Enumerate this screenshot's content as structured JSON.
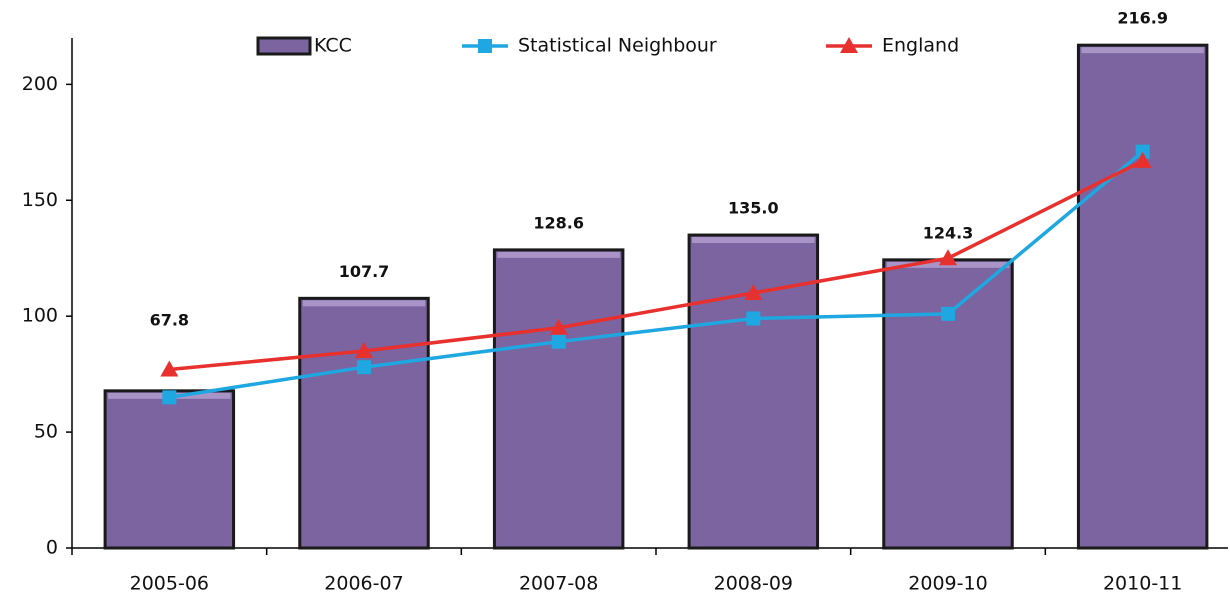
{
  "chart_data": {
    "type": "bar",
    "categories": [
      "2005-06",
      "2006-07",
      "2007-08",
      "2008-09",
      "2009-10",
      "2010-11"
    ],
    "series": [
      {
        "name": "KCC",
        "type": "bar",
        "color": "#7b64a0",
        "values": [
          67.8,
          107.7,
          128.6,
          135.0,
          124.3,
          216.9
        ],
        "value_labels": [
          "67.8",
          "107.7",
          "128.6",
          "135.0",
          "124.3",
          "216.9"
        ]
      },
      {
        "name": "Statistical Neighbour",
        "type": "line",
        "marker": "square",
        "color": "#1ea7e0",
        "values": [
          65,
          78,
          89,
          99,
          101,
          171
        ]
      },
      {
        "name": "England",
        "type": "line",
        "marker": "triangle",
        "color": "#e8302e",
        "values": [
          77,
          85,
          95,
          110,
          125,
          167
        ]
      }
    ],
    "ylim": [
      0,
      220
    ],
    "yticks": [
      0,
      50,
      100,
      150,
      200
    ],
    "legend": "top"
  }
}
